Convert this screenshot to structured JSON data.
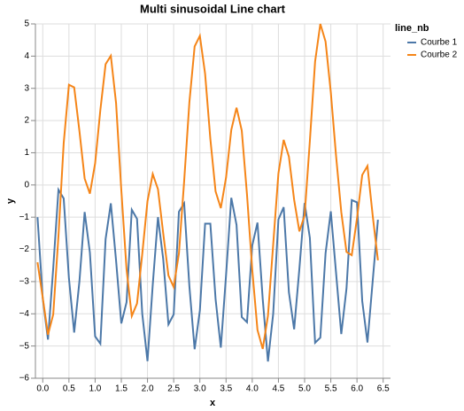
{
  "chart_data": {
    "type": "line",
    "title": "Multi sinusoidal Line chart",
    "xlabel": "x",
    "ylabel": "y",
    "legend_title": "line_nb",
    "legend": "right",
    "grid": true,
    "xlim": [
      -0.14,
      6.64
    ],
    "ylim": [
      -6,
      5
    ],
    "xticks": [
      {
        "value": 0,
        "label": "0.0"
      },
      0.5,
      {
        "value": 1,
        "label": "1.0"
      },
      1.5,
      {
        "value": 2,
        "label": "2.0"
      },
      2.5,
      {
        "value": 3,
        "label": "3.0"
      },
      3.5,
      {
        "value": 4,
        "label": "4.0"
      },
      4.5,
      {
        "value": 5,
        "label": "5.0"
      },
      5.5,
      {
        "value": 6,
        "label": "6.0"
      },
      6.5
    ],
    "yticks": [
      {
        "value": -6,
        "label": "−6"
      },
      {
        "value": -5,
        "label": "−5"
      },
      {
        "value": -4,
        "label": "−4"
      },
      {
        "value": -3,
        "label": "−3"
      },
      {
        "value": -2,
        "label": "−2"
      },
      {
        "value": -1,
        "label": "−1"
      },
      0,
      1,
      2,
      3,
      4,
      5
    ],
    "x": [
      -0.1,
      0.0,
      0.1,
      0.2,
      0.3,
      0.4,
      0.5,
      0.6,
      0.7,
      0.8,
      0.9,
      1.0,
      1.1,
      1.2,
      1.3,
      1.4,
      1.5,
      1.6,
      1.7,
      1.8,
      1.9,
      2.0,
      2.1,
      2.2,
      2.3,
      2.4,
      2.5,
      2.6,
      2.7,
      2.8,
      2.9,
      3.0,
      3.1,
      3.2,
      3.3,
      3.4,
      3.5,
      3.6,
      3.7,
      3.8,
      3.9,
      4.0,
      4.1,
      4.2,
      4.3,
      4.4,
      4.5,
      4.6,
      4.7,
      4.8,
      4.9,
      5.0,
      5.1,
      5.2,
      5.3,
      5.4,
      5.5,
      5.6,
      5.7,
      5.8,
      5.9,
      6.0,
      6.1,
      6.2,
      6.3,
      6.4
    ],
    "series": [
      {
        "name": "Courbe 1",
        "color": "#4c78a8",
        "values": [
          -1.0,
          -3.53,
          -4.8,
          -2.58,
          -0.15,
          -0.42,
          -2.9,
          -4.58,
          -3.0,
          -0.84,
          -2.1,
          -4.7,
          -4.93,
          -1.68,
          -0.57,
          -2.35,
          -4.3,
          -3.64,
          -0.77,
          -1.05,
          -4.0,
          -5.47,
          -3.1,
          -1.0,
          -2.3,
          -4.33,
          -4.02,
          -0.83,
          -0.57,
          -3.15,
          -5.1,
          -3.9,
          -1.2,
          -1.2,
          -3.54,
          -5.05,
          -2.8,
          -0.4,
          -1.24,
          -4.1,
          -4.26,
          -1.88,
          -1.17,
          -3.54,
          -5.48,
          -4.0,
          -1.07,
          -0.69,
          -3.33,
          -4.48,
          -2.6,
          -0.56,
          -1.64,
          -4.9,
          -4.74,
          -2.12,
          -0.82,
          -2.72,
          -4.63,
          -3.21,
          -0.47,
          -0.54,
          -3.6,
          -4.89,
          -2.98,
          -1.08
        ]
      },
      {
        "name": "Courbe 2",
        "color": "#f58518",
        "values": [
          -2.4,
          -3.5,
          -4.65,
          -4.02,
          -1.58,
          1.3,
          3.11,
          3.03,
          1.68,
          0.2,
          -0.27,
          0.67,
          2.33,
          3.75,
          4.01,
          2.54,
          -0.16,
          -2.62,
          -4.07,
          -3.68,
          -2.14,
          -0.5,
          0.34,
          -0.13,
          -1.5,
          -2.81,
          -3.17,
          -2.13,
          0.12,
          2.57,
          4.3,
          4.63,
          3.45,
          1.43,
          -0.2,
          -0.72,
          0.23,
          1.71,
          2.4,
          1.69,
          -0.3,
          -2.63,
          -4.5,
          -5.09,
          -4.06,
          -1.85,
          0.36,
          1.4,
          0.88,
          -0.46,
          -1.44,
          -0.95,
          1.36,
          3.83,
          5.0,
          4.45,
          2.88,
          0.91,
          -0.84,
          -2.08,
          -2.18,
          -1.04,
          0.31,
          0.59,
          -0.95,
          -2.34
        ]
      }
    ]
  }
}
